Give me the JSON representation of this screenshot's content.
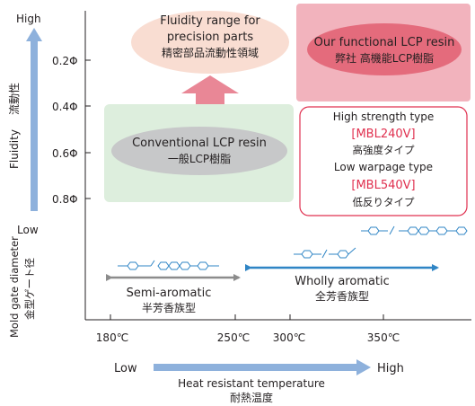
{
  "axes": {
    "y_label_en": "Fluidity",
    "y_label_jp": "流動性",
    "y_high": "High",
    "y_low": "Low",
    "y_ticks": [
      "0.2Φ",
      "0.4Φ",
      "0.6Φ",
      "0.8Φ"
    ],
    "y2_label_en": "Mold gate diameter",
    "y2_label_jp": "金型ゲート径",
    "x_ticks": [
      "180℃",
      "250℃",
      "300℃",
      "350℃"
    ],
    "x_low": "Low",
    "x_high": "High",
    "x_label_en": "Heat resistant temperature",
    "x_label_jp": "耐熱温度"
  },
  "target": {
    "line1": "Fluidity range for",
    "line2": "precision parts",
    "line3": "精密部品流動性領域"
  },
  "conventional": {
    "line1": "Conventional LCP resin",
    "line2": "一般LCP樹脂"
  },
  "functional": {
    "line1": "Our functional LCP resin",
    "line2": "弊社 高機能LCP樹脂"
  },
  "grades": {
    "type1_en": "High strength type",
    "type1_code": "[MBL240V]",
    "type1_jp": "高強度タイプ",
    "type2_en": "Low warpage type",
    "type2_code": "[MBL540V]",
    "type2_jp": "低反りタイプ"
  },
  "ranges": {
    "semi_en": "Semi-aromatic",
    "semi_jp": "半芳香族型",
    "wholly_en": "Wholly aromatic",
    "wholly_jp": "全芳香族型"
  },
  "colors": {
    "axis_arrow": "#8eb1dc",
    "conventional_box": "#ddeedd",
    "functional_box": "#f2b3bd",
    "highlight_red": "#e0304f",
    "semi_arrow": "#8c8c8c",
    "wholly_arrow": "#2f85c5"
  },
  "icons": [
    "molecular-chain-icon"
  ]
}
